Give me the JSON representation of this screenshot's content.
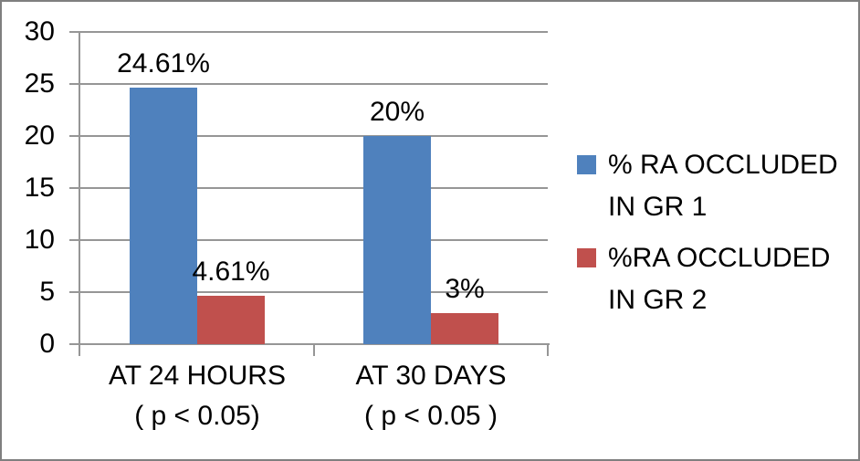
{
  "chart_data": {
    "type": "bar",
    "categories": [
      "AT 24 HOURS ( p < 0.05)",
      "AT 30 DAYS ( p < 0.05 )"
    ],
    "category_lines": [
      [
        "AT 24 HOURS",
        "( p < 0.05)"
      ],
      [
        "AT 30 DAYS",
        "( p < 0.05 )"
      ]
    ],
    "series": [
      {
        "name": "% RA OCCLUDED IN GR 1",
        "name_lines": [
          "% RA OCCLUDED",
          "IN GR 1"
        ],
        "color": "#4F81BD",
        "values": [
          24.61,
          20
        ],
        "value_labels": [
          "24.61%",
          "20%"
        ]
      },
      {
        "name": "%RA OCCLUDED IN GR 2",
        "name_lines": [
          "%RA OCCLUDED",
          "IN GR 2"
        ],
        "color": "#C0504D",
        "values": [
          4.61,
          3
        ],
        "value_labels": [
          "4.61%",
          "3%"
        ]
      }
    ],
    "ylim": [
      0,
      30
    ],
    "yticks": [
      0,
      5,
      10,
      15,
      20,
      25,
      30
    ],
    "grid": true,
    "legend_position": "right",
    "title": "",
    "xlabel": "",
    "ylabel": ""
  },
  "colors": {
    "series_gr1": "#4F81BD",
    "series_gr2": "#C0504D",
    "gridline": "#969696",
    "axis": "#969696",
    "border": "#7F7F7F",
    "background": "#FFFFFF",
    "text": "#000000"
  }
}
